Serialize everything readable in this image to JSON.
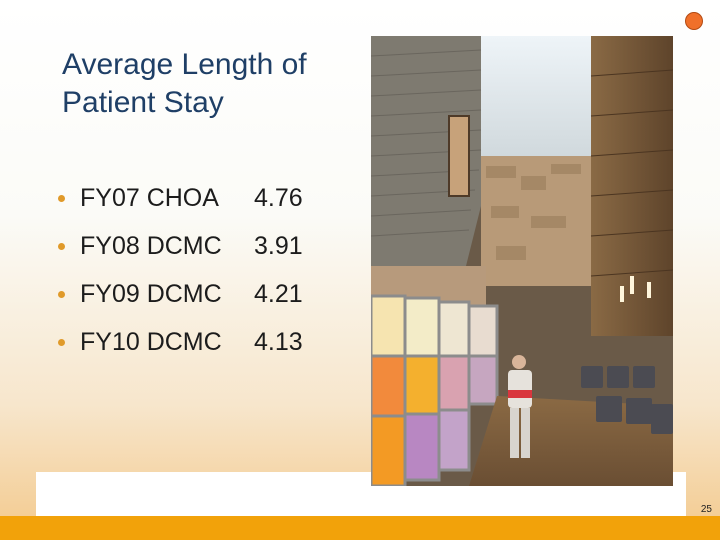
{
  "slide": {
    "title": "Average Length of Patient Stay",
    "bullets": [
      {
        "label": "FY07 CHOA",
        "value": "4.76"
      },
      {
        "label": "FY08 DCMC",
        "value": "3.91"
      },
      {
        "label": "FY09 DCMC",
        "value": "4.21"
      },
      {
        "label": "FY10 DCMC",
        "value": "4.13"
      }
    ],
    "page_number": "25",
    "colors": {
      "title": "#1f3f66",
      "bullet_dot": "#e09a2a",
      "bottom_band": "#f2a20a",
      "corner_dot": "#f0702a"
    },
    "photo_subject": "hospital-atrium-photo"
  }
}
